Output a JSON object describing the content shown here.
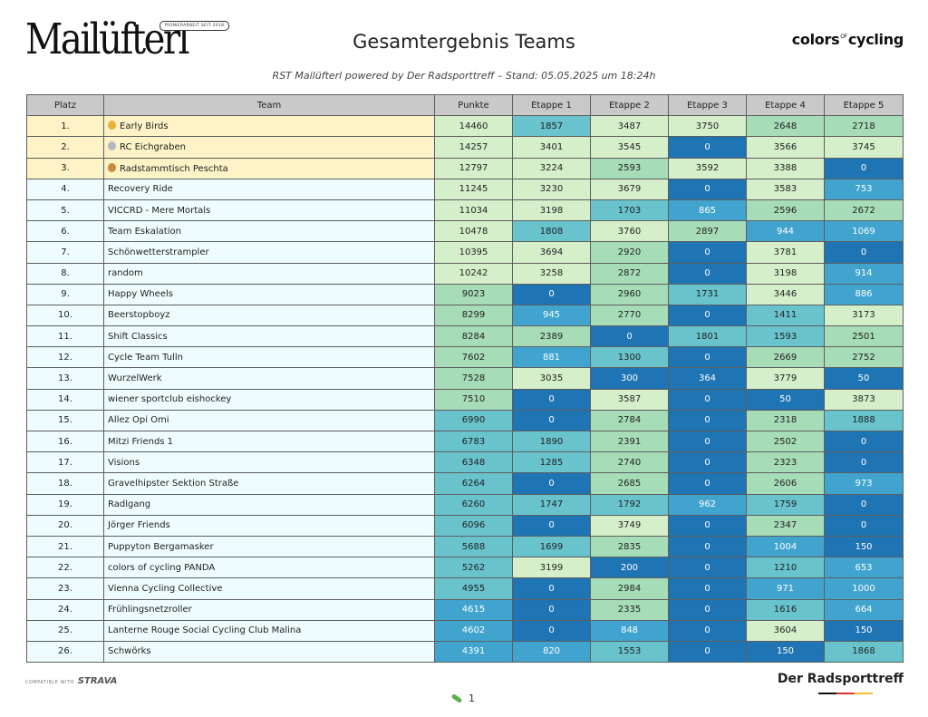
{
  "header": {
    "logo_text": "Mailüfterl",
    "logo_tag": "PIONIERARBEIT SEIT 2018",
    "title": "Gesamtergebnis Teams",
    "subtitle": "RST Mailüfterl powered by Der Radsporttreff – Stand: 05.05.2025 um 18:24h",
    "brand_a": "colors",
    "brand_of": "OF",
    "brand_b": "cycling"
  },
  "table": {
    "columns": [
      "Platz",
      "Team",
      "Punkte",
      "Etappe 1",
      "Etappe 2",
      "Etappe 3",
      "Etappe 4",
      "Etappe 5"
    ],
    "rows": [
      {
        "platz": "1.",
        "team": "Early Birds",
        "medal": "gold",
        "punkte": "14460",
        "e": [
          "1857",
          "3487",
          "3750",
          "2648",
          "2718"
        ]
      },
      {
        "platz": "2.",
        "team": "RC Eichgraben",
        "medal": "silver",
        "punkte": "14257",
        "e": [
          "3401",
          "3545",
          "0",
          "3566",
          "3745"
        ]
      },
      {
        "platz": "3.",
        "team": "Radstammtisch Peschta",
        "medal": "bronze",
        "punkte": "12797",
        "e": [
          "3224",
          "2593",
          "3592",
          "3388",
          "0"
        ]
      },
      {
        "platz": "4.",
        "team": "Recovery Ride",
        "punkte": "11245",
        "e": [
          "3230",
          "3679",
          "0",
          "3583",
          "753"
        ]
      },
      {
        "platz": "5.",
        "team": "VICCRD - Mere Mortals",
        "punkte": "11034",
        "e": [
          "3198",
          "1703",
          "865",
          "2596",
          "2672"
        ]
      },
      {
        "platz": "6.",
        "team": "Team Eskalation",
        "punkte": "10478",
        "e": [
          "1808",
          "3760",
          "2897",
          "944",
          "1069"
        ]
      },
      {
        "platz": "7.",
        "team": "Schönwetterstrampler",
        "punkte": "10395",
        "e": [
          "3694",
          "2920",
          "0",
          "3781",
          "0"
        ]
      },
      {
        "platz": "8.",
        "team": "random",
        "punkte": "10242",
        "e": [
          "3258",
          "2872",
          "0",
          "3198",
          "914"
        ]
      },
      {
        "platz": "9.",
        "team": "Happy Wheels",
        "punkte": "9023",
        "e": [
          "0",
          "2960",
          "1731",
          "3446",
          "886"
        ]
      },
      {
        "platz": "10.",
        "team": "Beerstopboyz",
        "punkte": "8299",
        "e": [
          "945",
          "2770",
          "0",
          "1411",
          "3173"
        ]
      },
      {
        "platz": "11.",
        "team": "Shift Classics",
        "punkte": "8284",
        "e": [
          "2389",
          "0",
          "1801",
          "1593",
          "2501"
        ]
      },
      {
        "platz": "12.",
        "team": "Cycle Team Tulln",
        "punkte": "7602",
        "e": [
          "881",
          "1300",
          "0",
          "2669",
          "2752"
        ]
      },
      {
        "platz": "13.",
        "team": "WurzelWerk",
        "punkte": "7528",
        "e": [
          "3035",
          "300",
          "364",
          "3779",
          "50"
        ]
      },
      {
        "platz": "14.",
        "team": "wiener sportclub eishockey",
        "punkte": "7510",
        "e": [
          "0",
          "3587",
          "0",
          "50",
          "3873"
        ]
      },
      {
        "platz": "15.",
        "team": "Allez Opi Omi",
        "punkte": "6990",
        "e": [
          "0",
          "2784",
          "0",
          "2318",
          "1888"
        ]
      },
      {
        "platz": "16.",
        "team": "Mitzi Friends 1",
        "punkte": "6783",
        "e": [
          "1890",
          "2391",
          "0",
          "2502",
          "0"
        ]
      },
      {
        "platz": "17.",
        "team": "Visions",
        "punkte": "6348",
        "e": [
          "1285",
          "2740",
          "0",
          "2323",
          "0"
        ]
      },
      {
        "platz": "18.",
        "team": "Gravelhipster Sektion Straße",
        "punkte": "6264",
        "e": [
          "0",
          "2685",
          "0",
          "2606",
          "973"
        ]
      },
      {
        "platz": "19.",
        "team": "Radlgang",
        "punkte": "6260",
        "e": [
          "1747",
          "1792",
          "962",
          "1759",
          "0"
        ]
      },
      {
        "platz": "20.",
        "team": "Jörger Friends",
        "punkte": "6096",
        "e": [
          "0",
          "3749",
          "0",
          "2347",
          "0"
        ]
      },
      {
        "platz": "21.",
        "team": "Puppyton Bergamasker",
        "punkte": "5688",
        "e": [
          "1699",
          "2835",
          "0",
          "1004",
          "150"
        ]
      },
      {
        "platz": "22.",
        "team": "colors of cycling PANDA",
        "punkte": "5262",
        "e": [
          "3199",
          "200",
          "0",
          "1210",
          "653"
        ]
      },
      {
        "platz": "23.",
        "team": "Vienna Cycling Collective",
        "punkte": "4955",
        "e": [
          "0",
          "2984",
          "0",
          "971",
          "1000"
        ]
      },
      {
        "platz": "24.",
        "team": "Frühlingsnetzroller",
        "punkte": "4615",
        "e": [
          "0",
          "2335",
          "0",
          "1616",
          "664"
        ]
      },
      {
        "platz": "25.",
        "team": "Lanterne Rouge Social Cycling Club Malina",
        "punkte": "4602",
        "e": [
          "0",
          "848",
          "0",
          "3604",
          "150"
        ]
      },
      {
        "platz": "26.",
        "team": "Schwörks",
        "punkte": "4391",
        "e": [
          "820",
          "1553",
          "0",
          "150",
          "1868"
        ]
      }
    ]
  },
  "footer": {
    "strava_prefix": "COMPATIBLE WITH",
    "strava_name": "STRAVA",
    "brand": "Der Radsporttreff",
    "page_number": "1"
  },
  "colors": {
    "header_bg": "#c9c9c9",
    "podium_bg": "#fdf3c6",
    "team_bg": "#effcfd",
    "gold": "#e8b33a",
    "silver": "#b3b8bf",
    "bronze": "#c98b3c",
    "value_scale": [
      "#1f74b3",
      "#40a4cf",
      "#68c3cd",
      "#a7dcb8",
      "#d6efcb"
    ]
  }
}
